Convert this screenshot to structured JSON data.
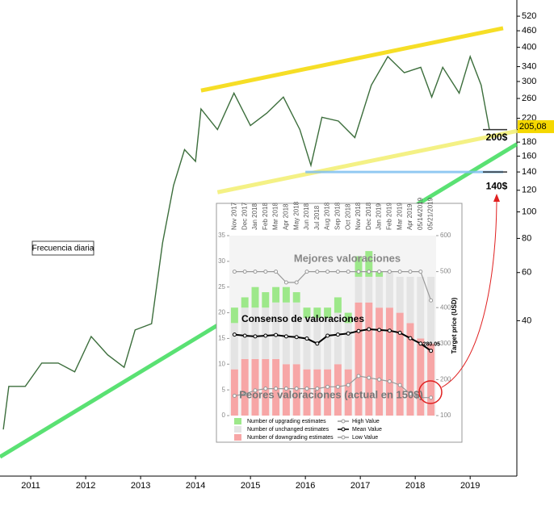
{
  "chart_data": [
    {
      "type": "line",
      "log_scale": true,
      "color": "#3c6e3c",
      "x": [
        2010.5,
        2010.6,
        2010.9,
        2011.2,
        2011.5,
        2011.8,
        2012.1,
        2012.4,
        2012.7,
        2012.9,
        2013.2,
        2013.4,
        2013.6,
        2013.8,
        2014.0,
        2014.1,
        2014.4,
        2014.7,
        2015.0,
        2015.3,
        2015.6,
        2015.9,
        2016.1,
        2016.3,
        2016.6,
        2016.9,
        2017.2,
        2017.5,
        2017.8,
        2018.1,
        2018.3,
        2018.5,
        2018.8,
        2019.0,
        2019.2,
        2019.35
      ],
      "values": [
        16,
        23,
        23,
        28,
        28,
        26,
        35,
        30,
        27,
        37,
        39,
        77,
        125,
        169,
        153,
        238,
        200,
        272,
        207,
        230,
        263,
        200,
        148,
        222,
        215,
        187,
        291,
        370,
        323,
        338,
        263,
        338,
        272,
        370,
        291,
        200
      ],
      "xlim": [
        2010.44,
        2019.85
      ],
      "ylim": [
        10.8,
        596
      ],
      "xticks": [
        2011,
        2012,
        2013,
        2014,
        2015,
        2016,
        2017,
        2018,
        2019
      ],
      "yticks": [
        40,
        60,
        80,
        100,
        120,
        140,
        160,
        180,
        200,
        220,
        260,
        300,
        340,
        400,
        460,
        520
      ],
      "trend_lines": [
        {
          "color": "#f5d800",
          "x": [
            2014.1,
            2019.6
          ],
          "y": [
            278,
            470
          ]
        },
        {
          "color": "#f2ee70",
          "x": [
            2014.4,
            2019.87
          ],
          "y": [
            118,
            198
          ]
        },
        {
          "color": "#3ddc5a",
          "x": [
            2010.44,
            2019.85
          ],
          "y": [
            12.7,
            177
          ]
        },
        {
          "color": "#7fbff0",
          "x": [
            2016.0,
            2019.6
          ],
          "y": [
            140,
            140
          ]
        }
      ],
      "note": "Frecuencia diaria",
      "price_label": {
        "value": 205.08,
        "label": "205,08"
      },
      "annotations": [
        {
          "value": 200,
          "label": "200$"
        },
        {
          "value": 140,
          "label": "140$"
        }
      ]
    },
    {
      "type": "bar",
      "stacked": true,
      "categories": [
        "Nov 2017",
        "Dec 2017",
        "Jan 2018",
        "Feb 2018",
        "Mar 2018",
        "Apr 2018",
        "May 2018",
        "Jun 2018",
        "Jul 2018",
        "Aug 2018",
        "Sep 2018",
        "Oct 2018",
        "Nov 2018",
        "Dec 2018",
        "Jan 2019",
        "Feb 2019",
        "Mar 2019",
        "Apr 2019",
        "05/14/2019",
        "05/21/2019"
      ],
      "series": [
        {
          "name": "Number of downgrading estimates",
          "color": "#f7a6a6",
          "values": [
            9,
            11,
            11,
            11,
            11,
            10,
            10,
            9,
            9,
            9,
            10,
            9,
            22,
            22,
            21,
            21,
            20,
            18,
            15,
            14
          ]
        },
        {
          "name": "Number of unchanged estimates",
          "color": "#e4e4e4",
          "values": [
            9,
            10,
            10,
            10,
            11,
            12,
            12,
            10,
            10,
            10,
            10,
            9,
            5,
            5,
            6,
            7,
            7,
            9,
            12,
            13
          ]
        },
        {
          "name": "Number of upgrading estimates",
          "color": "#9de88a",
          "values": [
            3,
            2,
            4,
            3,
            3,
            3,
            2,
            2,
            2,
            2,
            3,
            2,
            4,
            5,
            1,
            0,
            0,
            0,
            0,
            0
          ]
        },
        {
          "name": "High Value",
          "color": "#999999",
          "axis": "y2",
          "values": [
            500,
            500,
            500,
            500,
            500,
            470,
            470,
            500,
            500,
            500,
            500,
            500,
            500,
            500,
            500,
            500,
            500,
            500,
            500,
            420
          ]
        },
        {
          "name": "Mean Value",
          "color": "#000000",
          "axis": "y2",
          "values": [
            325,
            322,
            320,
            322,
            324,
            320,
            318,
            314,
            300,
            322,
            325,
            328,
            335,
            340,
            338,
            336,
            330,
            315,
            300,
            280.05
          ]
        },
        {
          "name": "Low Value",
          "color": "#999999",
          "axis": "y2",
          "values": [
            155,
            160,
            170,
            175,
            175,
            175,
            175,
            175,
            175,
            180,
            180,
            185,
            210,
            205,
            200,
            195,
            185,
            160,
            150,
            150
          ]
        }
      ],
      "ylim": [
        0,
        35
      ],
      "yticks": [
        0,
        5,
        10,
        15,
        20,
        25,
        30,
        35
      ],
      "y2lim": [
        100,
        600
      ],
      "y2ticks": [
        100,
        200,
        300,
        400,
        500,
        600
      ],
      "y2_label": "Target price (USD)",
      "value_label": "280.05",
      "texts": [
        "Mejores valoraciones",
        "Consenso de valoraciones",
        "Peores valoraciones (actual en 150$)"
      ]
    }
  ]
}
